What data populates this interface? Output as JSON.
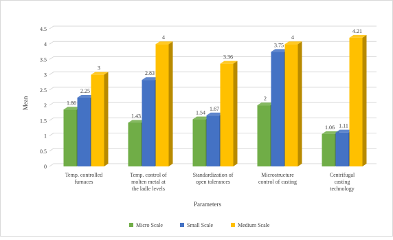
{
  "chart_data": {
    "type": "bar",
    "title": "",
    "xlabel": "Parameters",
    "ylabel": "Mean",
    "ylim": [
      0,
      4.5
    ],
    "yticks": [
      "0",
      "0.5",
      "1",
      "1.5",
      "2",
      "2.5",
      "3",
      "3.5",
      "4",
      "4.5"
    ],
    "grid": true,
    "legend_position": "bottom",
    "categories": [
      [
        "Temp. controlled",
        "furnaces"
      ],
      [
        "Temp. control of",
        "molten metal at",
        "the ladle levels"
      ],
      [
        "Standardization of",
        "open tolerances"
      ],
      [
        "Microstructure",
        "control of casting"
      ],
      [
        "Centrifugal",
        "casting",
        "technology"
      ]
    ],
    "series": [
      {
        "name": "Micro Scale",
        "color": "#70AD47",
        "values": [
          1.86,
          1.43,
          1.54,
          2,
          1.06
        ],
        "labels": [
          "1.86",
          "1.43",
          "1.54",
          "2",
          "1.06"
        ]
      },
      {
        "name": "Small Scale",
        "color": "#4472C4",
        "values": [
          2.25,
          2.83,
          1.67,
          3.75,
          1.11
        ],
        "labels": [
          "2.25",
          "2.83",
          "1.67",
          "3.75",
          "1.11"
        ]
      },
      {
        "name": "Medium Scale",
        "color": "#FFC000",
        "values": [
          3,
          4,
          3.36,
          4,
          4.21
        ],
        "labels": [
          "3",
          "4",
          "3.36",
          "4",
          "4.21"
        ]
      }
    ]
  }
}
